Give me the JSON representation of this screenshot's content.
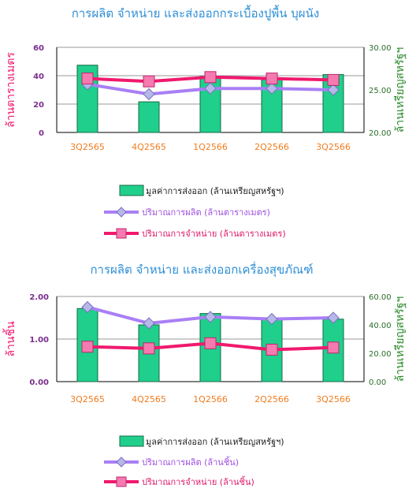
{
  "colors": {
    "bar_fill": "#1fcf8b",
    "bar_stroke": "#1a6b4a",
    "production_line": "#a97ff5",
    "production_marker": "#b6b8e8",
    "sales_line": "#f0196e",
    "sales_marker": "#f57ab0",
    "grid": "#9a9a9a",
    "title": "#2f8fd6",
    "left_axis_1": "#7b2d8e",
    "left_axis_2": "#7b2d8e",
    "right_axis": "#2c6e2c",
    "category_labels": "#f07c1e",
    "left_axis_title": "#f0196e",
    "right_axis_title": "#2c8a2c"
  },
  "chart_data": [
    {
      "type": "bar",
      "title": "การผลิต จำหน่าย และส่งออกกระเบื้องปูพื้น บุผนัง",
      "categories": [
        "3Q2565",
        "4Q2565",
        "1Q2566",
        "2Q2566",
        "3Q2566"
      ],
      "ylabel_left": "ล้านตารางเมตร",
      "ylabel_right": "ล้านเหรียญสหรัฐฯ",
      "ylim_left": [
        0,
        60
      ],
      "yticks_left": [
        "0",
        "20",
        "40",
        "60"
      ],
      "ylim_right": [
        20,
        30
      ],
      "yticks_right": [
        "20.00",
        "25.00",
        "30.00"
      ],
      "grid": true,
      "legend_position": "bottom",
      "series": [
        {
          "name": "มูลค่าการส่งออก (ล้านเหรียญสหรัฐฯ)",
          "kind": "bar",
          "axis": "right",
          "values": [
            27.9,
            23.6,
            26.6,
            26.2,
            26.8
          ]
        },
        {
          "name": "ปริมาณการผลิต (ล้านตารางเมตร)",
          "kind": "line",
          "axis": "left",
          "values": [
            34,
            27,
            31,
            31,
            30
          ]
        },
        {
          "name": "ปริมาณการจำหน่าย (ล้านตารางเมตร)",
          "kind": "line",
          "axis": "left",
          "values": [
            38,
            36,
            39,
            38,
            37
          ]
        }
      ]
    },
    {
      "type": "bar",
      "title": "การผลิต จำหน่าย และส่งออกเครื่องสุขภัณฑ์",
      "categories": [
        "3Q2565",
        "4Q2565",
        "1Q2566",
        "2Q2566",
        "3Q2566"
      ],
      "ylabel_left": "ล้านชิ้น",
      "ylabel_right": "ล้านเหรียญสหรัฐฯ",
      "ylim_left": [
        0,
        2
      ],
      "yticks_left": [
        "0.00",
        "1.00",
        "2.00"
      ],
      "ylim_right": [
        0,
        60
      ],
      "yticks_right": [
        "0.00",
        "20.00",
        "40.00",
        "60.00"
      ],
      "grid": true,
      "legend_position": "bottom",
      "series": [
        {
          "name": "มูลค่าการส่งออก (ล้านเหรียญสหรัฐฯ)",
          "kind": "bar",
          "axis": "right",
          "values": [
            51.5,
            40,
            48,
            45,
            44
          ]
        },
        {
          "name": "ปริมาณการผลิต (ล้านชิ้น)",
          "kind": "line",
          "axis": "left",
          "values": [
            1.75,
            1.37,
            1.52,
            1.47,
            1.5
          ]
        },
        {
          "name": "ปริมาณการจำหน่าย (ล้านชิ้น)",
          "kind": "line",
          "axis": "left",
          "values": [
            0.82,
            0.78,
            0.9,
            0.75,
            0.8
          ]
        }
      ]
    }
  ]
}
